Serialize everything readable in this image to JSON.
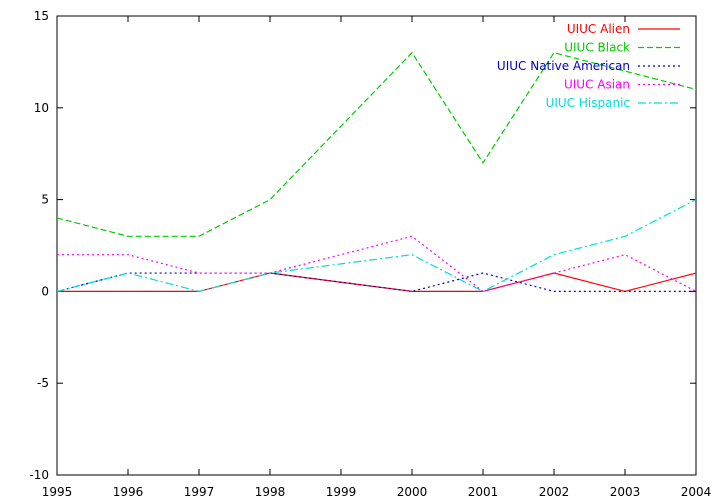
{
  "chart_data": {
    "type": "line",
    "title": "",
    "xlabel": "",
    "ylabel": "",
    "x": [
      1995,
      1996,
      1997,
      1998,
      1999,
      2000,
      2001,
      2002,
      2003,
      2004
    ],
    "xlim": [
      1995,
      2004
    ],
    "ylim": [
      -10,
      15
    ],
    "xticks": [
      "1995",
      "1996",
      "1997",
      "1998",
      "1999",
      "2000",
      "2001",
      "2002",
      "2003",
      "2004"
    ],
    "yticks": [
      "-10",
      "-5",
      "0",
      "5",
      "10",
      "15"
    ],
    "grid": false,
    "legend_position": "top-right",
    "series": [
      {
        "name": "UIUC Alien",
        "color": "#ff0000",
        "dash": "solid",
        "values": [
          0,
          0,
          0,
          1,
          0.5,
          0,
          0,
          1,
          0,
          1
        ]
      },
      {
        "name": "UIUC Black",
        "color": "#00cc00",
        "dash": "dashed",
        "values": [
          4,
          3,
          3,
          5,
          9,
          13,
          7,
          13,
          12,
          11
        ]
      },
      {
        "name": "UIUC Native American",
        "color": "#0000cc",
        "dash": "dotted",
        "values": [
          0,
          1,
          1,
          1,
          0.5,
          0,
          1,
          0,
          0,
          0
        ]
      },
      {
        "name": "UIUC Asian",
        "color": "#ff00ff",
        "dash": "dotted",
        "values": [
          2,
          2,
          1,
          1,
          2,
          3,
          0,
          1,
          2,
          0
        ]
      },
      {
        "name": "UIUC Hispanic",
        "color": "#00dddd",
        "dash": "dashdot",
        "values": [
          0,
          1,
          0,
          1,
          1.5,
          2,
          0,
          2,
          3,
          5
        ]
      }
    ]
  }
}
